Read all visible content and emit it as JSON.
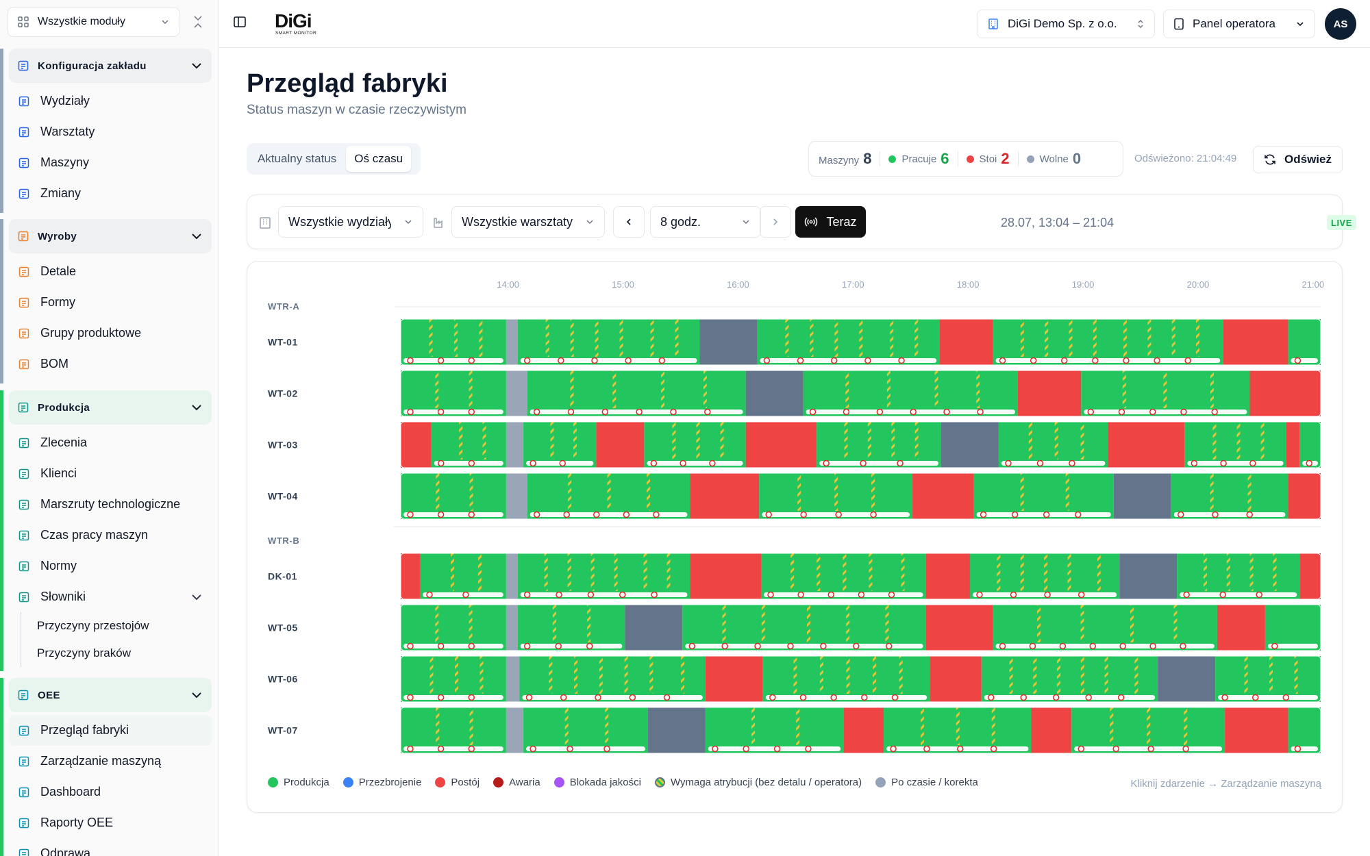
{
  "sidebar": {
    "module_select": "Wszystkie moduły",
    "groups": [
      {
        "title": "Konfiguracja zakładu",
        "items": [
          "Wydziały",
          "Warsztaty",
          "Maszyny",
          "Zmiany"
        ]
      },
      {
        "title": "Wyroby",
        "items": [
          "Detale",
          "Formy",
          "Grupy produktowe",
          "BOM"
        ]
      },
      {
        "title": "Produkcja",
        "items": [
          "Zlecenia",
          "Klienci",
          "Marszruty technologiczne",
          "Czas pracy maszyn",
          "Normy",
          "Słowniki"
        ],
        "subitems": [
          "Przyczyny przestojów",
          "Przyczyny braków"
        ]
      },
      {
        "title": "OEE",
        "items": [
          "Przegląd fabryki",
          "Zarządzanie maszyną",
          "Dashboard",
          "Raporty OEE",
          "Odprawa"
        ]
      }
    ]
  },
  "topbar": {
    "company": "DiGi Demo Sp. z o.o.",
    "panel": "Panel operatora",
    "avatar": "AS",
    "logo": "DiGi",
    "logo_sub": "SMART MONITOR"
  },
  "page": {
    "title": "Przegląd fabryki",
    "subtitle": "Status maszyn w czasie rzeczywistym"
  },
  "tabs": [
    "Aktualny status",
    "Oś czasu"
  ],
  "stats": {
    "machines_label": "Maszyny",
    "machines": "8",
    "working_label": "Pracuje",
    "working": "6",
    "stopped_label": "Stoi",
    "stopped": "2",
    "free_label": "Wolne",
    "free": "0"
  },
  "refreshed": "Odświeżono: 21:04:49",
  "refresh_label": "Odśwież",
  "filters": {
    "department": "Wszystkie wydziały",
    "workshop": "Wszystkie warsztaty",
    "period": "8 godz.",
    "now": "Teraz",
    "range": "28.07, 13:04 – 21:04",
    "live": "LIVE"
  },
  "legend": [
    {
      "label": "Produkcja",
      "color": "#22c55e"
    },
    {
      "label": "Przezbrojenie",
      "color": "#3b82f6"
    },
    {
      "label": "Postój",
      "color": "#ef4444"
    },
    {
      "label": "Awaria",
      "color": "#b91c1c"
    },
    {
      "label": "Blokada jakości",
      "color": "#a855f7"
    },
    {
      "label": "Wymaga atrybucji (bez detalu / operatora)",
      "color": "striped"
    },
    {
      "label": "Po czasie / korekta",
      "color": "#94a3b8"
    }
  ],
  "hint": "Kliknij zdarzenie → Zarządzanie maszyną",
  "colors": {
    "production": "#22c55e",
    "stop": "#ef4444",
    "idle": "#64748b",
    "after_time": "#9aa6b8",
    "attribution_stripe": "#e5c53a"
  },
  "chart_data": {
    "type": "gantt",
    "x_ticks": [
      "14:00",
      "15:00",
      "16:00",
      "17:00",
      "18:00",
      "19:00",
      "20:00",
      "21:00"
    ],
    "x_range": [
      "13:04",
      "21:04"
    ],
    "groups": [
      {
        "name": "WTR-A",
        "machines": [
          {
            "name": "WT-01",
            "segments": [
              {
                "s": "13:04",
                "e": "13:59",
                "state": "P"
              },
              {
                "s": "13:59",
                "e": "14:05",
                "state": "A"
              },
              {
                "s": "14:05",
                "e": "15:40",
                "state": "P"
              },
              {
                "s": "15:40",
                "e": "16:10",
                "state": "I"
              },
              {
                "s": "16:10",
                "e": "17:45",
                "state": "P"
              },
              {
                "s": "17:45",
                "e": "18:13",
                "state": "S"
              },
              {
                "s": "18:13",
                "e": "20:13",
                "state": "P"
              },
              {
                "s": "20:13",
                "e": "20:47",
                "state": "S"
              },
              {
                "s": "20:47",
                "e": "21:04",
                "state": "P"
              }
            ]
          },
          {
            "name": "WT-02",
            "segments": [
              {
                "s": "13:04",
                "e": "13:59",
                "state": "P"
              },
              {
                "s": "13:59",
                "e": "14:10",
                "state": "A"
              },
              {
                "s": "14:10",
                "e": "16:04",
                "state": "P"
              },
              {
                "s": "16:04",
                "e": "16:34",
                "state": "I"
              },
              {
                "s": "16:34",
                "e": "18:26",
                "state": "P"
              },
              {
                "s": "18:26",
                "e": "18:59",
                "state": "S"
              },
              {
                "s": "18:59",
                "e": "20:27",
                "state": "P"
              },
              {
                "s": "20:27",
                "e": "21:04",
                "state": "S"
              }
            ]
          },
          {
            "name": "WT-03",
            "segments": [
              {
                "s": "13:04",
                "e": "13:20",
                "state": "S"
              },
              {
                "s": "13:20",
                "e": "13:59",
                "state": "P"
              },
              {
                "s": "13:59",
                "e": "14:08",
                "state": "A"
              },
              {
                "s": "14:08",
                "e": "14:46",
                "state": "P"
              },
              {
                "s": "14:46",
                "e": "15:11",
                "state": "S"
              },
              {
                "s": "15:11",
                "e": "16:04",
                "state": "P"
              },
              {
                "s": "16:04",
                "e": "16:41",
                "state": "S"
              },
              {
                "s": "16:41",
                "e": "17:46",
                "state": "P"
              },
              {
                "s": "17:46",
                "e": "18:16",
                "state": "I"
              },
              {
                "s": "18:16",
                "e": "19:13",
                "state": "P"
              },
              {
                "s": "19:13",
                "e": "19:53",
                "state": "S"
              },
              {
                "s": "19:53",
                "e": "20:46",
                "state": "P"
              },
              {
                "s": "20:46",
                "e": "20:53",
                "state": "S"
              },
              {
                "s": "20:53",
                "e": "21:04",
                "state": "P"
              }
            ]
          },
          {
            "name": "WT-04",
            "segments": [
              {
                "s": "13:04",
                "e": "13:59",
                "state": "P"
              },
              {
                "s": "13:59",
                "e": "14:10",
                "state": "A"
              },
              {
                "s": "14:10",
                "e": "15:35",
                "state": "P"
              },
              {
                "s": "15:35",
                "e": "16:11",
                "state": "S"
              },
              {
                "s": "16:11",
                "e": "17:31",
                "state": "P"
              },
              {
                "s": "17:31",
                "e": "18:03",
                "state": "S"
              },
              {
                "s": "18:03",
                "e": "19:16",
                "state": "P"
              },
              {
                "s": "19:16",
                "e": "19:46",
                "state": "I"
              },
              {
                "s": "19:46",
                "e": "20:47",
                "state": "P"
              },
              {
                "s": "20:47",
                "e": "21:04",
                "state": "S"
              }
            ]
          }
        ]
      },
      {
        "name": "WTR-B",
        "machines": [
          {
            "name": "DK-01",
            "segments": [
              {
                "s": "13:04",
                "e": "13:14",
                "state": "S"
              },
              {
                "s": "13:14",
                "e": "13:59",
                "state": "P"
              },
              {
                "s": "13:59",
                "e": "14:05",
                "state": "A"
              },
              {
                "s": "14:05",
                "e": "15:35",
                "state": "P"
              },
              {
                "s": "15:35",
                "e": "16:12",
                "state": "S"
              },
              {
                "s": "16:12",
                "e": "17:38",
                "state": "P"
              },
              {
                "s": "17:38",
                "e": "18:01",
                "state": "S"
              },
              {
                "s": "18:01",
                "e": "19:19",
                "state": "P"
              },
              {
                "s": "19:19",
                "e": "19:49",
                "state": "I"
              },
              {
                "s": "19:49",
                "e": "20:53",
                "state": "P"
              },
              {
                "s": "20:53",
                "e": "21:15",
                "state": "S"
              },
              {
                "s": "21:15",
                "e": "21:04",
                "state": "P"
              }
            ]
          },
          {
            "name": "WT-05",
            "segments": [
              {
                "s": "13:04",
                "e": "13:59",
                "state": "P"
              },
              {
                "s": "13:59",
                "e": "14:05",
                "state": "A"
              },
              {
                "s": "14:05",
                "e": "15:01",
                "state": "P"
              },
              {
                "s": "15:01",
                "e": "15:31",
                "state": "I"
              },
              {
                "s": "15:31",
                "e": "17:38",
                "state": "P"
              },
              {
                "s": "17:38",
                "e": "18:13",
                "state": "S"
              },
              {
                "s": "18:13",
                "e": "20:10",
                "state": "P"
              },
              {
                "s": "20:10",
                "e": "20:35",
                "state": "S"
              },
              {
                "s": "20:35",
                "e": "21:04",
                "state": "P"
              }
            ]
          },
          {
            "name": "WT-06",
            "segments": [
              {
                "s": "13:04",
                "e": "13:59",
                "state": "P"
              },
              {
                "s": "13:59",
                "e": "14:06",
                "state": "A"
              },
              {
                "s": "14:06",
                "e": "15:43",
                "state": "P"
              },
              {
                "s": "15:43",
                "e": "16:13",
                "state": "S"
              },
              {
                "s": "16:13",
                "e": "17:40",
                "state": "P"
              },
              {
                "s": "17:40",
                "e": "18:07",
                "state": "S"
              },
              {
                "s": "18:07",
                "e": "19:39",
                "state": "P"
              },
              {
                "s": "19:39",
                "e": "20:09",
                "state": "I"
              },
              {
                "s": "20:09",
                "e": "21:04",
                "state": "P"
              }
            ]
          },
          {
            "name": "WT-07",
            "segments": [
              {
                "s": "13:04",
                "e": "13:59",
                "state": "P"
              },
              {
                "s": "13:59",
                "e": "14:08",
                "state": "A"
              },
              {
                "s": "14:08",
                "e": "15:13",
                "state": "P"
              },
              {
                "s": "15:13",
                "e": "15:43",
                "state": "I"
              },
              {
                "s": "15:43",
                "e": "16:55",
                "state": "P"
              },
              {
                "s": "16:55",
                "e": "17:16",
                "state": "S"
              },
              {
                "s": "17:16",
                "e": "18:33",
                "state": "P"
              },
              {
                "s": "18:33",
                "e": "18:54",
                "state": "S"
              },
              {
                "s": "18:54",
                "e": "20:14",
                "state": "P"
              },
              {
                "s": "20:14",
                "e": "20:47",
                "state": "S"
              },
              {
                "s": "20:47",
                "e": "21:04",
                "state": "P"
              }
            ]
          }
        ]
      }
    ]
  }
}
